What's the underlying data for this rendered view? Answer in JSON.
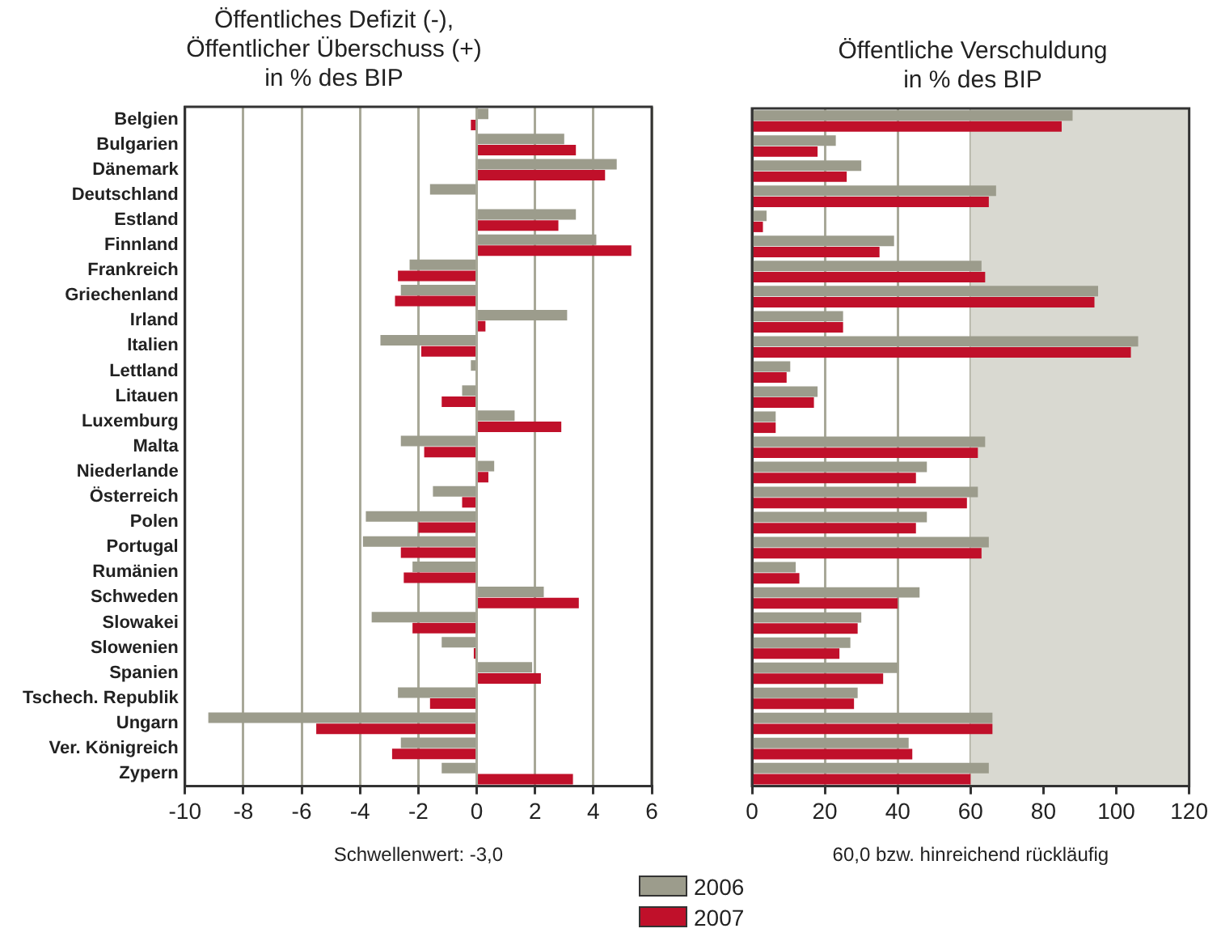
{
  "chart_data": [
    {
      "type": "bar",
      "orientation": "horizontal",
      "title": "Öffentliches Defizit (-),\nÖffentlicher Überschuss (+)\nin % des BIP",
      "xlabel": "Schwellenwert: -3,0",
      "categories": [
        "Belgien",
        "Bulgarien",
        "Dänemark",
        "Deutschland",
        "Estland",
        "Finnland",
        "Frankreich",
        "Griechenland",
        "Irland",
        "Italien",
        "Lettland",
        "Litauen",
        "Luxemburg",
        "Malta",
        "Niederlande",
        "Österreich",
        "Polen",
        "Portugal",
        "Rumänien",
        "Schweden",
        "Slowakei",
        "Slowenien",
        "Spanien",
        "Tschech. Republik",
        "Ungarn",
        "Ver. Königreich",
        "Zypern"
      ],
      "series": [
        {
          "name": "2006",
          "color": "#9c9c8c",
          "values": [
            0.4,
            3.0,
            4.8,
            -1.6,
            3.4,
            4.1,
            -2.3,
            -2.6,
            3.1,
            -3.3,
            -0.2,
            -0.5,
            1.3,
            -2.6,
            0.6,
            -1.5,
            -3.8,
            -3.9,
            -2.2,
            2.3,
            -3.6,
            -1.2,
            1.9,
            -2.7,
            -9.2,
            -2.6,
            -1.2
          ]
        },
        {
          "name": "2007",
          "color": "#c0102a",
          "values": [
            -0.2,
            3.4,
            4.4,
            0.0,
            2.8,
            5.3,
            -2.7,
            -2.8,
            0.3,
            -1.9,
            0.0,
            -1.2,
            2.9,
            -1.8,
            0.4,
            -0.5,
            -2.0,
            -2.6,
            -2.5,
            3.5,
            -2.2,
            -0.1,
            2.2,
            -1.6,
            -5.5,
            -2.9,
            3.3
          ]
        }
      ],
      "xlim": [
        -10,
        6
      ],
      "xticks": [
        -10,
        -8,
        -6,
        -4,
        -2,
        0,
        2,
        4,
        6
      ],
      "grid": "x",
      "legend": "bottom"
    },
    {
      "type": "bar",
      "orientation": "horizontal",
      "title": "Öffentliche Verschuldung\nin % des BIP",
      "xlabel": "60,0 bzw. hinreichend rückläufig",
      "categories": [
        null,
        null,
        null,
        null,
        null,
        null,
        null,
        null,
        null,
        null,
        null,
        null,
        null,
        null,
        null,
        null,
        null,
        null,
        null,
        null,
        null,
        null,
        null,
        null,
        null,
        null,
        null
      ],
      "series": [
        {
          "name": "2006",
          "color": "#9c9c8c",
          "values": [
            88,
            23,
            30,
            67,
            4,
            39,
            63,
            95,
            25,
            106,
            10.5,
            18,
            6.5,
            64,
            48,
            62,
            48,
            65,
            12,
            46,
            30,
            27,
            40,
            29,
            66,
            43,
            65
          ]
        },
        {
          "name": "2007",
          "color": "#c0102a",
          "values": [
            85,
            18,
            26,
            65,
            3,
            35,
            64,
            94,
            25,
            104,
            9.5,
            17,
            6.5,
            62,
            45,
            59,
            45,
            63,
            13,
            40,
            29,
            24,
            36,
            28,
            66,
            44,
            60
          ]
        }
      ],
      "xlim": [
        0,
        120
      ],
      "xticks": [
        0,
        20,
        40,
        60,
        80,
        100,
        120
      ],
      "grid": "x",
      "tick_labels": "x",
      "bands": [
        {
          "axis": "x",
          "from": 60,
          "to": 120,
          "color": "#d9d9d1"
        }
      ]
    }
  ]
}
